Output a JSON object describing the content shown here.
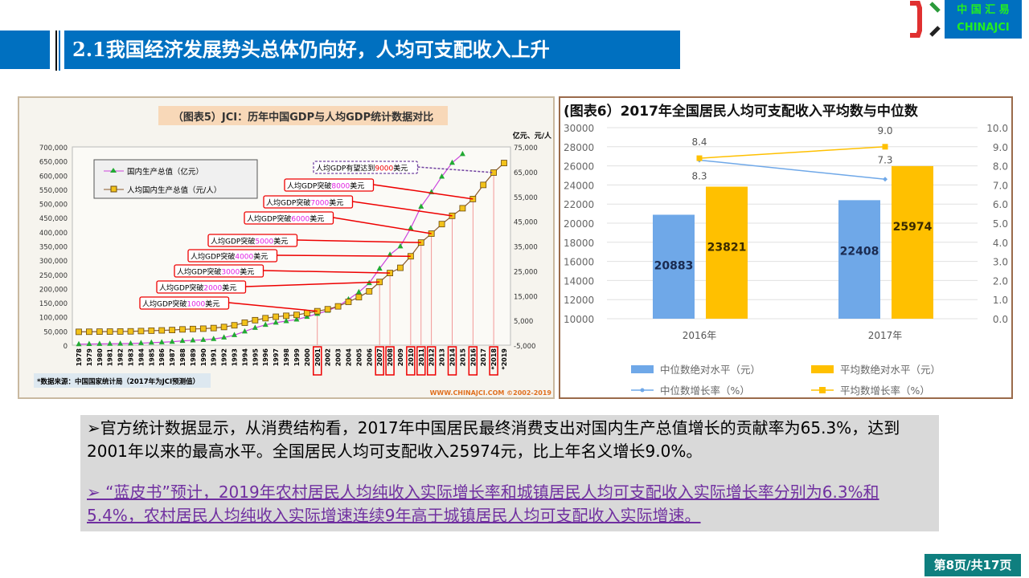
{
  "header": {
    "title": "2.1我国经济发展势头总体仍向好，人均可支配收入上升"
  },
  "logo": {
    "line1": "中 国 汇 易",
    "line2": "CHINAJCI"
  },
  "chart_data": [
    {
      "type": "line",
      "title": "（图表5）JCI：历年中国GDP与人均GDP统计数据对比",
      "right_axis_unit": "亿元、元/人",
      "x": [
        "1978",
        "1979",
        "1980",
        "1981",
        "1982",
        "1983",
        "1984",
        "1985",
        "1986",
        "1987",
        "1988",
        "1989",
        "1990",
        "1991",
        "1992",
        "1993",
        "1994",
        "1995",
        "1996",
        "1997",
        "1998",
        "1999",
        "2000",
        "2001",
        "2002",
        "2003",
        "2004",
        "2005",
        "2006",
        "2007",
        "2008",
        "2009",
        "2010",
        "2011",
        "2012",
        "2013",
        "2014",
        "2015",
        "2016",
        "2017",
        "*2018",
        "*2019"
      ],
      "highlighted_years": [
        "2001",
        "2007",
        "2008",
        "2010",
        "2011",
        "2012",
        "2014",
        "2016",
        "*2018"
      ],
      "ylim_left": [
        0,
        700000
      ],
      "yticks_left": [
        "700,000",
        "650,000",
        "600,000",
        "550,000",
        "500,000",
        "450,000",
        "400,000",
        "350,000",
        "300,000",
        "250,000",
        "200,000",
        "150,000",
        "100,000",
        "50,000",
        "0"
      ],
      "ylim_right": [
        -5000,
        75000
      ],
      "yticks_right": [
        "75,000",
        "65,000",
        "55,000",
        "45,000",
        "35,000",
        "25,000",
        "15,000",
        "5,000",
        "-5,000"
      ],
      "series": [
        {
          "name": "国内生产总值（亿元）",
          "axis": "left",
          "color": "#cc44dd",
          "marker": "triangle-green",
          "values": [
            3679,
            4101,
            4588,
            4936,
            5373,
            6021,
            7279,
            9099,
            10376,
            12175,
            15180,
            17180,
            18873,
            22006,
            27195,
            35673,
            48638,
            61340,
            71814,
            79715,
            85196,
            90564,
            100280,
            110863,
            121717,
            137422,
            161840,
            187319,
            219439,
            270232,
            319516,
            349081,
            413030,
            489301,
            540367,
            595244,
            643974,
            675000,
            null,
            null,
            null,
            null
          ]
        },
        {
          "name": "人均国内生产总值（元/人）",
          "axis": "right",
          "color": "#8a5a2a",
          "marker": "square-yellow",
          "values": [
            385,
            423,
            468,
            497,
            533,
            588,
            702,
            866,
            973,
            1123,
            1378,
            1536,
            1663,
            1912,
            2334,
            3027,
            4081,
            5091,
            5898,
            6481,
            6860,
            7229,
            7942,
            8717,
            9506,
            10666,
            12487,
            14368,
            16738,
            20505,
            24121,
            26222,
            30876,
            36403,
            40007,
            43852,
            47203,
            50251,
            53980,
            59660,
            64644,
            68500
          ]
        }
      ],
      "annotations": [
        {
          "pre": "人均GDP突破",
          "num": "1000",
          "post": "美元",
          "year": "2001"
        },
        {
          "pre": "人均GDP突破",
          "num": "2000",
          "post": "美元",
          "year": "2007"
        },
        {
          "pre": "人均GDP突破",
          "num": "3000",
          "post": "美元",
          "year": "2008"
        },
        {
          "pre": "人均GDP突破",
          "num": "4000",
          "post": "美元",
          "year": "2010"
        },
        {
          "pre": "人均GDP突破",
          "num": "5000",
          "post": "美元",
          "year": "2011"
        },
        {
          "pre": "人均GDP突破",
          "num": "6000",
          "post": "美元",
          "year": "2012"
        },
        {
          "pre": "人均GDP突破",
          "num": "7000",
          "post": "美元",
          "year": "2014"
        },
        {
          "pre": "人均GDP突破",
          "num": "8000",
          "post": "美元",
          "year": "2016"
        },
        {
          "pre": "人均GDP有望达到",
          "num": "9000",
          "post": "美元",
          "year": "*2018"
        }
      ],
      "source": "*数据来源：中国国家统计局（2017年为JCI预测值）",
      "watermark": "WWW.CHINAJCI.COM ©2002-2019"
    },
    {
      "type": "bar",
      "title": "(图表6）2017年全国居民人均可支配收入平均数与中位数",
      "categories": [
        "2016年",
        "2017年"
      ],
      "ylim_left": [
        10000,
        30000
      ],
      "yticks_left": [
        "30000",
        "28000",
        "26000",
        "24000",
        "22000",
        "20000",
        "18000",
        "16000",
        "14000",
        "12000",
        "10000"
      ],
      "ylim_right": [
        0,
        10
      ],
      "yticks_right": [
        "10.0",
        "9.0",
        "8.0",
        "7.0",
        "6.0",
        "5.0",
        "4.0",
        "3.0",
        "2.0",
        "1.0",
        "0.0"
      ],
      "series": [
        {
          "name": "中位数绝对水平（元）",
          "kind": "bar",
          "color": "#6fa8e8",
          "values": [
            20883,
            22408
          ]
        },
        {
          "name": "平均数绝对水平（元）",
          "kind": "bar",
          "color": "#ffc000",
          "values": [
            23821,
            25974
          ]
        },
        {
          "name": "中位数增长率（%）",
          "kind": "line",
          "axis": "right",
          "color": "#6fa8e8",
          "values": [
            8.3,
            7.3
          ]
        },
        {
          "name": "平均数增长率（%）",
          "kind": "line",
          "axis": "right",
          "color": "#ffc000",
          "values": [
            8.4,
            9.0
          ]
        }
      ]
    }
  ],
  "text": {
    "p1": "➢官方统计数据显示，从消费结构看，2017年中国居民最终消费支出对国内生产总值增长的贡献率为65.3%，达到2001年以来的最高水平。全国居民人均可支配收入25974元，比上年名义增长9.0%。",
    "p2": "➢ “蓝皮书”预计，2019年农村居民人均纯收入实际增长率和城镇居民人均可支配收入实际增长率分别为6.3%和5.4%，农村居民人均纯收入实际增速连续9年高于城镇居民人均可支配收入实际增速。"
  },
  "footer": {
    "page": "第8页/共17页"
  }
}
